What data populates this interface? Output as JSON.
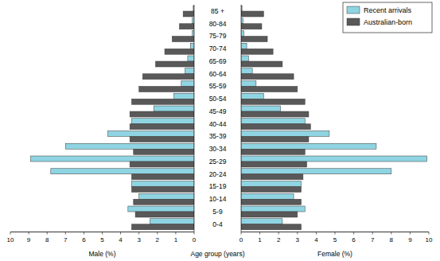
{
  "chart_data": {
    "type": "bar",
    "orientation": "horizontal",
    "legend": "upper right",
    "grid": false,
    "category_label": "Age group (years)",
    "x_label_left": "Male (%)",
    "x_label_right": "Female (%)",
    "xlim": [
      0,
      10
    ],
    "xticks": [
      0,
      1,
      2,
      3,
      4,
      5,
      6,
      7,
      8,
      9,
      10
    ],
    "categories": [
      "0-4",
      "5-9",
      "10-14",
      "15-19",
      "20-24",
      "25-29",
      "30-34",
      "35-39",
      "40-44",
      "45-49",
      "50-54",
      "55-59",
      "60-64",
      "65-69",
      "70-74",
      "75-79",
      "80-84",
      "85 +"
    ],
    "series": [
      {
        "name": "Recent arrivals",
        "color": "#8fd4e2",
        "male": [
          2.4,
          3.6,
          3.0,
          3.4,
          7.8,
          8.9,
          7.0,
          4.7,
          3.4,
          2.2,
          1.1,
          0.7,
          0.5,
          0.35,
          0.2,
          0.1,
          0.1,
          0.05
        ],
        "female": [
          2.2,
          3.4,
          2.8,
          3.2,
          8.0,
          9.9,
          7.2,
          4.7,
          3.4,
          2.1,
          1.2,
          0.8,
          0.6,
          0.4,
          0.3,
          0.15,
          0.1,
          0.05
        ]
      },
      {
        "name": "Australian-born",
        "color": "#595959",
        "male": [
          3.4,
          3.2,
          3.3,
          3.4,
          3.4,
          3.5,
          3.3,
          3.5,
          3.5,
          3.5,
          3.4,
          3.0,
          2.8,
          2.1,
          1.6,
          1.2,
          0.8,
          0.6
        ],
        "female": [
          3.2,
          3.0,
          3.2,
          3.2,
          3.3,
          3.5,
          3.4,
          3.6,
          3.7,
          3.6,
          3.4,
          3.0,
          2.8,
          2.2,
          1.7,
          1.4,
          1.1,
          1.2
        ]
      }
    ]
  }
}
